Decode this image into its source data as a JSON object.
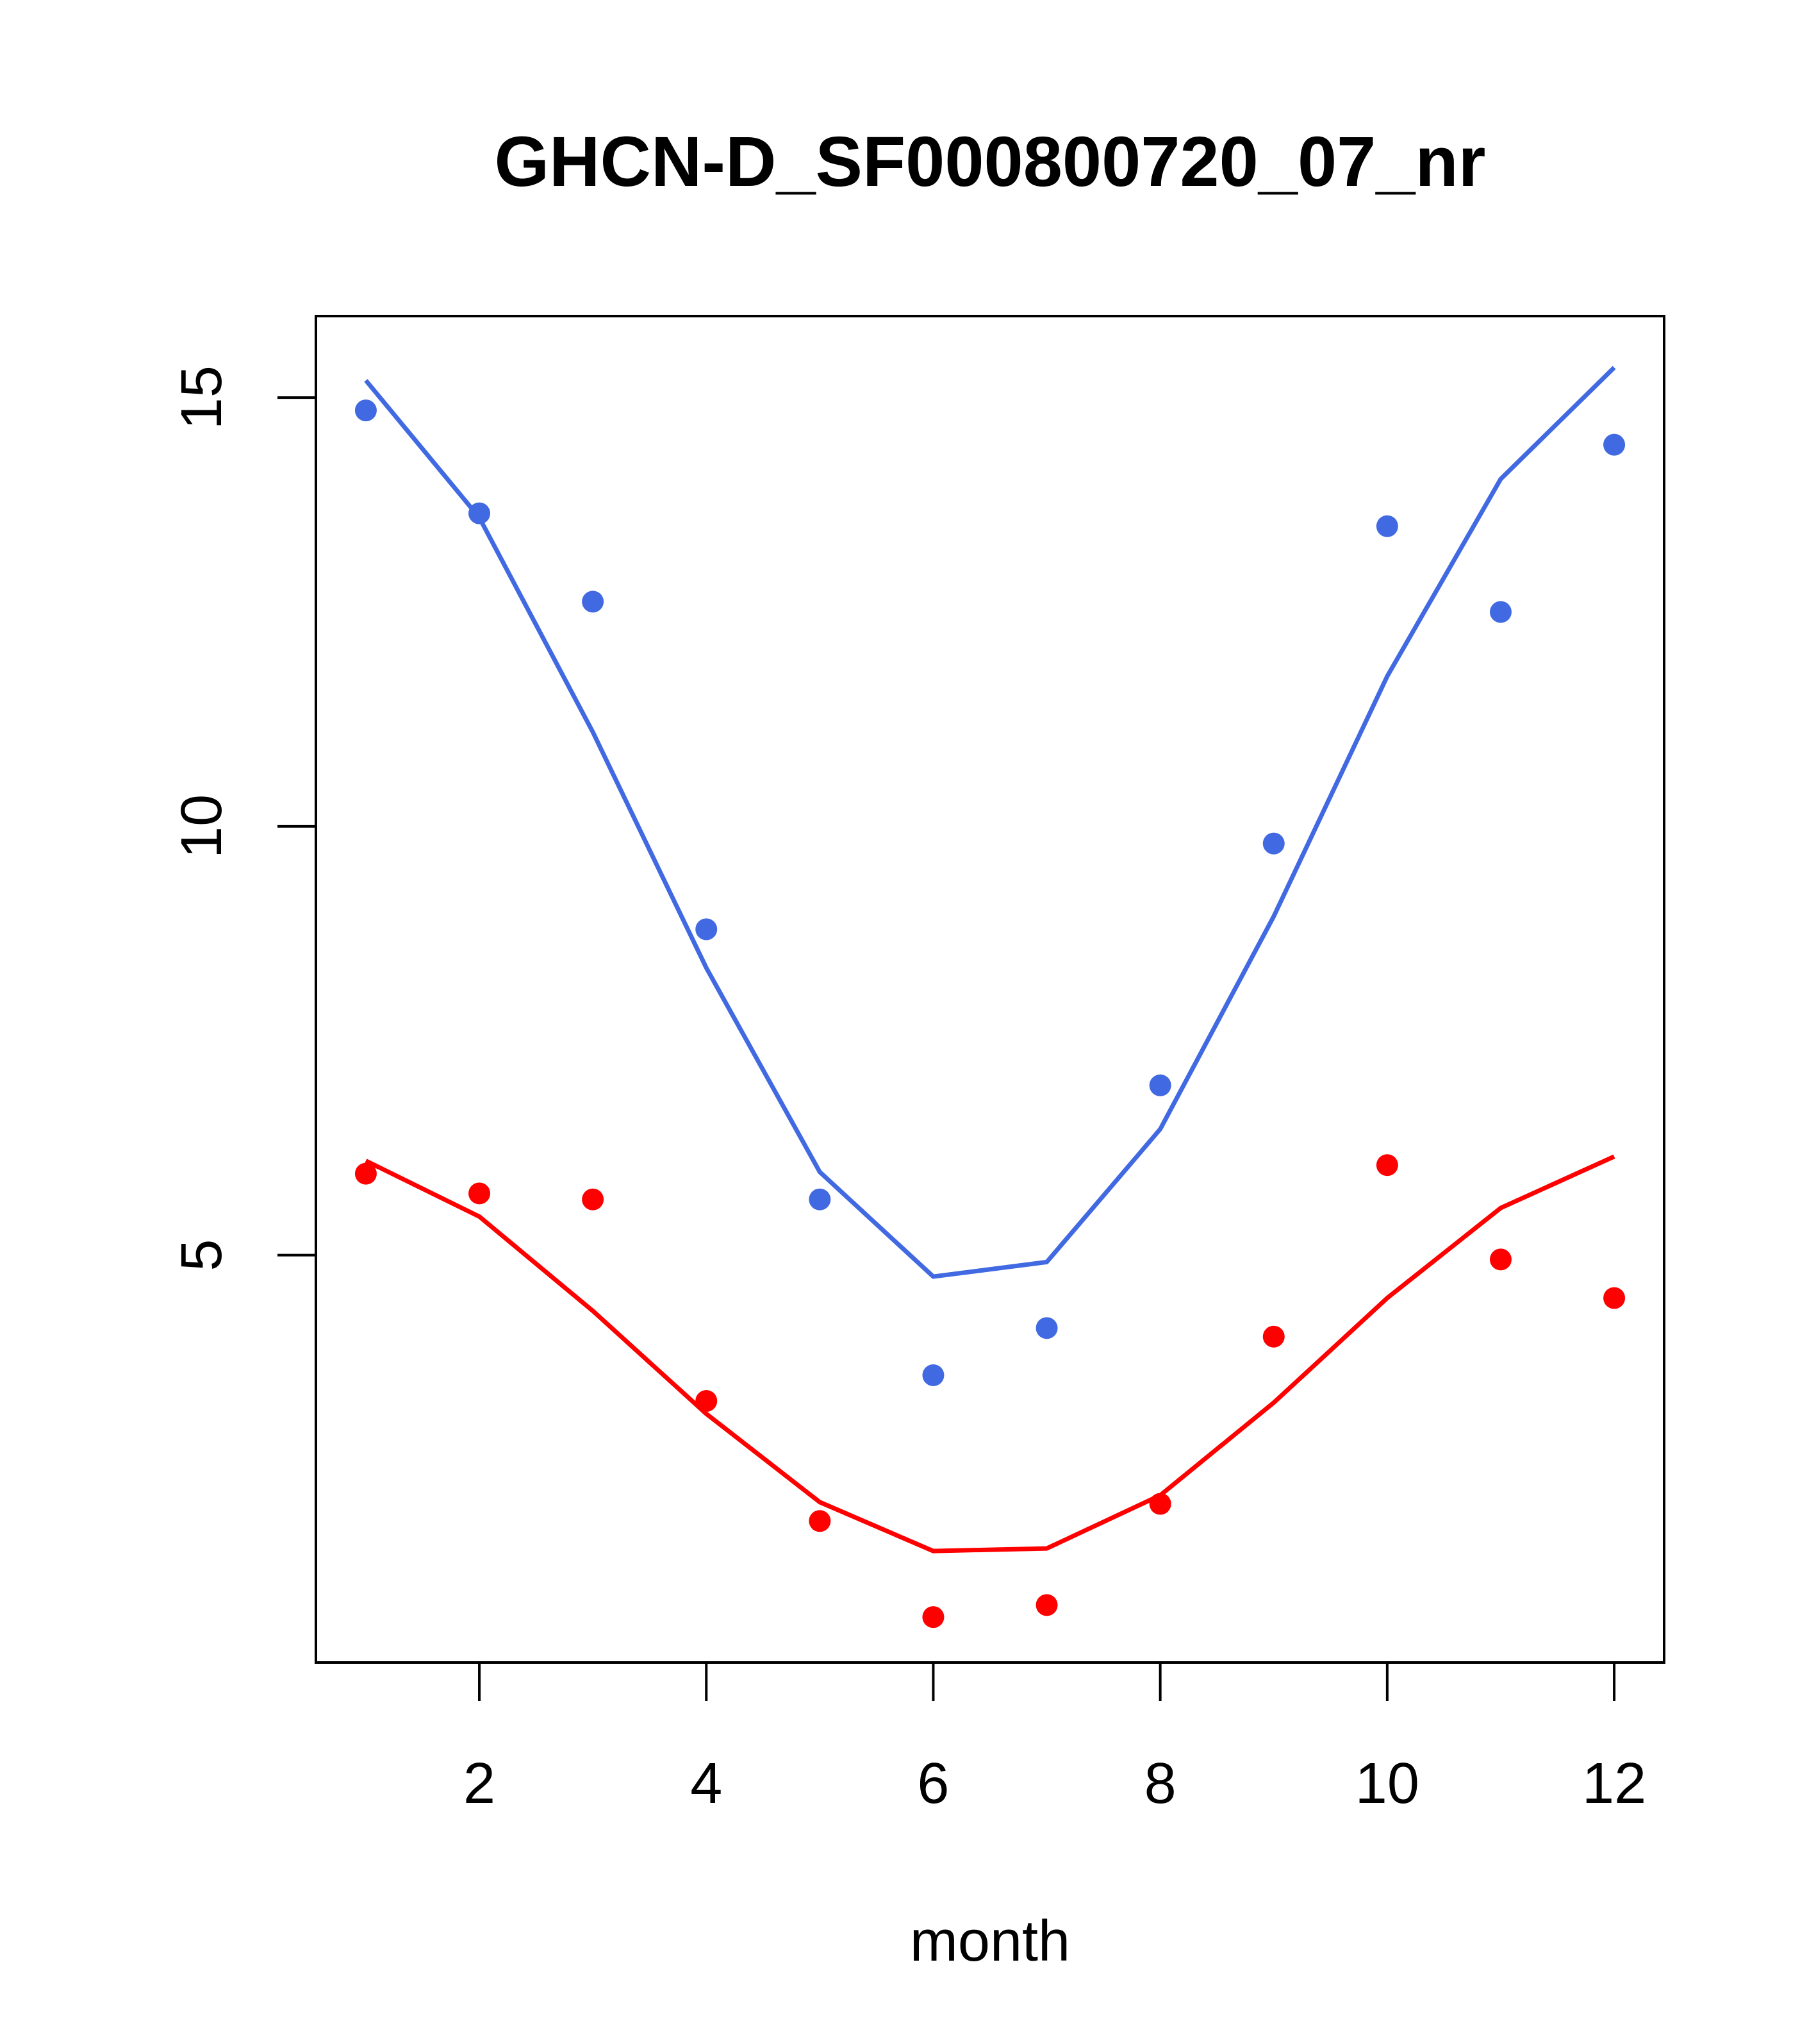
{
  "chart_data": {
    "type": "scatter",
    "title": "GHCN-D_SF000800720_07_nr",
    "xlabel": "month",
    "ylabel": "",
    "xlim": [
      0.56,
      12.44
    ],
    "ylim": [
      0.25,
      15.95
    ],
    "x_ticks": [
      2,
      4,
      6,
      8,
      10,
      12
    ],
    "y_ticks": [
      5,
      10,
      15
    ],
    "grid": false,
    "legend": "none",
    "x": [
      1,
      2,
      3,
      4,
      5,
      6,
      7,
      8,
      9,
      10,
      11,
      12
    ],
    "series": [
      {
        "color": "#4169E1",
        "points": [
          14.85,
          13.65,
          12.62,
          8.8,
          5.65,
          3.6,
          4.15,
          6.98,
          9.8,
          13.5,
          12.5,
          14.45
        ],
        "fit": [
          15.2,
          13.6,
          11.1,
          8.35,
          5.97,
          4.75,
          4.92,
          6.47,
          8.95,
          11.75,
          14.05,
          15.35
        ]
      },
      {
        "color": "#FF0000",
        "points": [
          5.95,
          5.72,
          5.65,
          3.3,
          1.9,
          0.78,
          0.92,
          2.1,
          4.05,
          6.05,
          4.95,
          4.5
        ],
        "fit": [
          6.1,
          5.45,
          4.35,
          3.15,
          2.12,
          1.55,
          1.58,
          2.2,
          3.28,
          4.5,
          5.55,
          6.15
        ]
      }
    ]
  }
}
